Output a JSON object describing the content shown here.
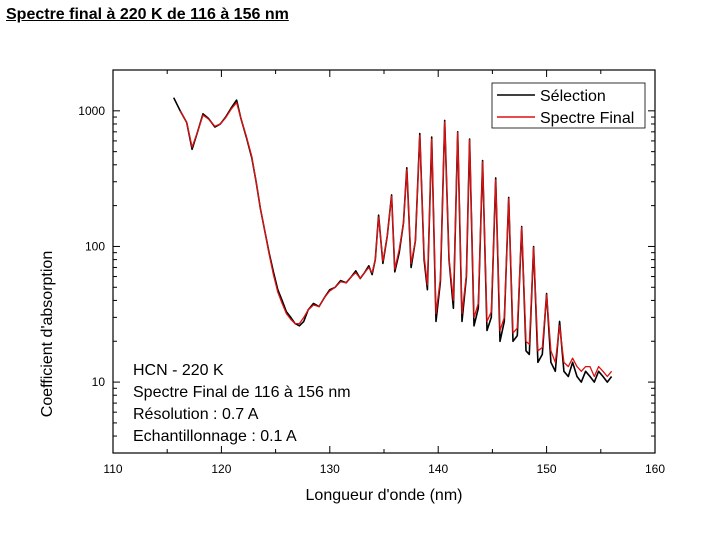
{
  "page": {
    "title": "Spectre final à 220 K de 116 à 156 nm"
  },
  "chart_data": {
    "type": "line",
    "xlabel": "Longueur d'onde (nm)",
    "ylabel": "Coefficient d'absorption",
    "xlim": [
      110,
      160
    ],
    "ylim": [
      3,
      2000
    ],
    "yscale": "log",
    "xticks": [
      110,
      120,
      130,
      140,
      150,
      160
    ],
    "yticks": [
      10,
      100,
      1000
    ],
    "xtick_labels": [
      "110",
      "120",
      "130",
      "140",
      "150",
      "160"
    ],
    "ytick_labels": [
      "10",
      "100",
      "1000"
    ],
    "legend": {
      "position": "top-right"
    },
    "annotation": [
      "HCN - 220 K",
      "Spectre Final de 116 à 156 nm",
      "Résolution : 0.7 A",
      "Echantillonnage : 0.1 A"
    ],
    "series": [
      {
        "name": "Sélection",
        "color": "#000000",
        "x": [
          115.6,
          116.2,
          116.8,
          117.3,
          117.8,
          118.3,
          118.8,
          119.4,
          119.9,
          120.4,
          120.9,
          121.4,
          121.8,
          122.3,
          122.8,
          123.2,
          123.6,
          124.0,
          124.4,
          124.8,
          125.2,
          125.6,
          126.0,
          126.4,
          126.8,
          127.2,
          127.6,
          128.0,
          128.5,
          129.0,
          129.5,
          130.0,
          130.5,
          131.0,
          131.5,
          132.0,
          132.4,
          132.8,
          133.2,
          133.6,
          133.9,
          134.2,
          134.5,
          134.9,
          135.3,
          135.7,
          136.0,
          136.4,
          136.8,
          137.1,
          137.5,
          137.9,
          138.3,
          138.7,
          139.0,
          139.4,
          139.8,
          140.2,
          140.6,
          141.0,
          141.4,
          141.8,
          142.2,
          142.6,
          142.9,
          143.3,
          143.7,
          144.1,
          144.5,
          144.9,
          145.3,
          145.7,
          146.1,
          146.5,
          146.9,
          147.3,
          147.7,
          148.1,
          148.4,
          148.8,
          149.2,
          149.6,
          150.0,
          150.4,
          150.8,
          151.2,
          151.6,
          152.0,
          152.4,
          152.8,
          153.2,
          153.6,
          154.0,
          154.4,
          154.8,
          155.2,
          155.6,
          156.0
        ],
        "values": [
          1250,
          1000,
          820,
          520,
          700,
          950,
          880,
          760,
          800,
          900,
          1050,
          1200,
          880,
          640,
          450,
          300,
          190,
          130,
          90,
          65,
          48,
          40,
          33,
          30,
          27,
          26,
          28,
          34,
          38,
          36,
          42,
          48,
          50,
          56,
          54,
          60,
          66,
          58,
          64,
          72,
          62,
          80,
          170,
          75,
          120,
          240,
          65,
          90,
          150,
          380,
          70,
          110,
          680,
          80,
          48,
          640,
          28,
          55,
          850,
          80,
          35,
          700,
          28,
          60,
          620,
          26,
          35,
          430,
          24,
          30,
          320,
          20,
          28,
          230,
          20,
          22,
          140,
          17,
          16,
          100,
          14,
          16,
          45,
          14,
          12,
          28,
          12,
          11,
          14,
          11,
          10,
          12,
          11,
          10,
          12,
          11,
          10,
          11
        ]
      },
      {
        "name": "Spectre Final",
        "color": "#dd1111",
        "x": [
          116.2,
          116.8,
          117.3,
          117.8,
          118.3,
          118.8,
          119.4,
          119.9,
          120.4,
          120.9,
          121.4,
          121.8,
          122.3,
          122.8,
          123.2,
          123.6,
          124.0,
          124.4,
          124.8,
          125.2,
          125.6,
          126.0,
          126.4,
          126.8,
          127.2,
          127.6,
          128.0,
          128.5,
          129.0,
          129.5,
          130.0,
          130.5,
          131.0,
          131.5,
          132.0,
          132.4,
          132.8,
          133.2,
          133.6,
          133.9,
          134.2,
          134.5,
          134.9,
          135.3,
          135.7,
          136.0,
          136.4,
          136.8,
          137.1,
          137.5,
          137.9,
          138.3,
          138.7,
          139.0,
          139.4,
          139.8,
          140.2,
          140.6,
          141.0,
          141.4,
          141.8,
          142.2,
          142.6,
          142.9,
          143.3,
          143.7,
          144.1,
          144.5,
          144.9,
          145.3,
          145.7,
          146.1,
          146.5,
          146.9,
          147.3,
          147.7,
          148.1,
          148.4,
          148.8,
          149.2,
          149.6,
          150.0,
          150.4,
          150.8,
          151.2,
          151.6,
          152.0,
          152.4,
          152.8,
          153.2,
          153.6,
          154.0,
          154.4,
          154.8,
          155.2,
          155.6,
          156.0
        ],
        "values": [
          1000,
          820,
          540,
          700,
          930,
          870,
          770,
          800,
          890,
          1030,
          1150,
          880,
          650,
          460,
          300,
          190,
          130,
          88,
          62,
          46,
          38,
          32,
          29,
          27,
          27,
          30,
          34,
          37,
          36,
          42,
          47,
          50,
          55,
          54,
          60,
          64,
          58,
          64,
          70,
          64,
          80,
          165,
          78,
          120,
          235,
          68,
          95,
          150,
          370,
          75,
          110,
          660,
          85,
          52,
          620,
          32,
          58,
          830,
          82,
          40,
          690,
          32,
          62,
          610,
          30,
          38,
          420,
          28,
          33,
          310,
          24,
          30,
          225,
          23,
          25,
          138,
          20,
          19,
          98,
          17,
          18,
          44,
          17,
          14,
          26,
          14,
          13,
          15,
          13,
          12,
          13,
          13,
          11,
          13,
          12,
          11,
          12
        ]
      }
    ]
  }
}
